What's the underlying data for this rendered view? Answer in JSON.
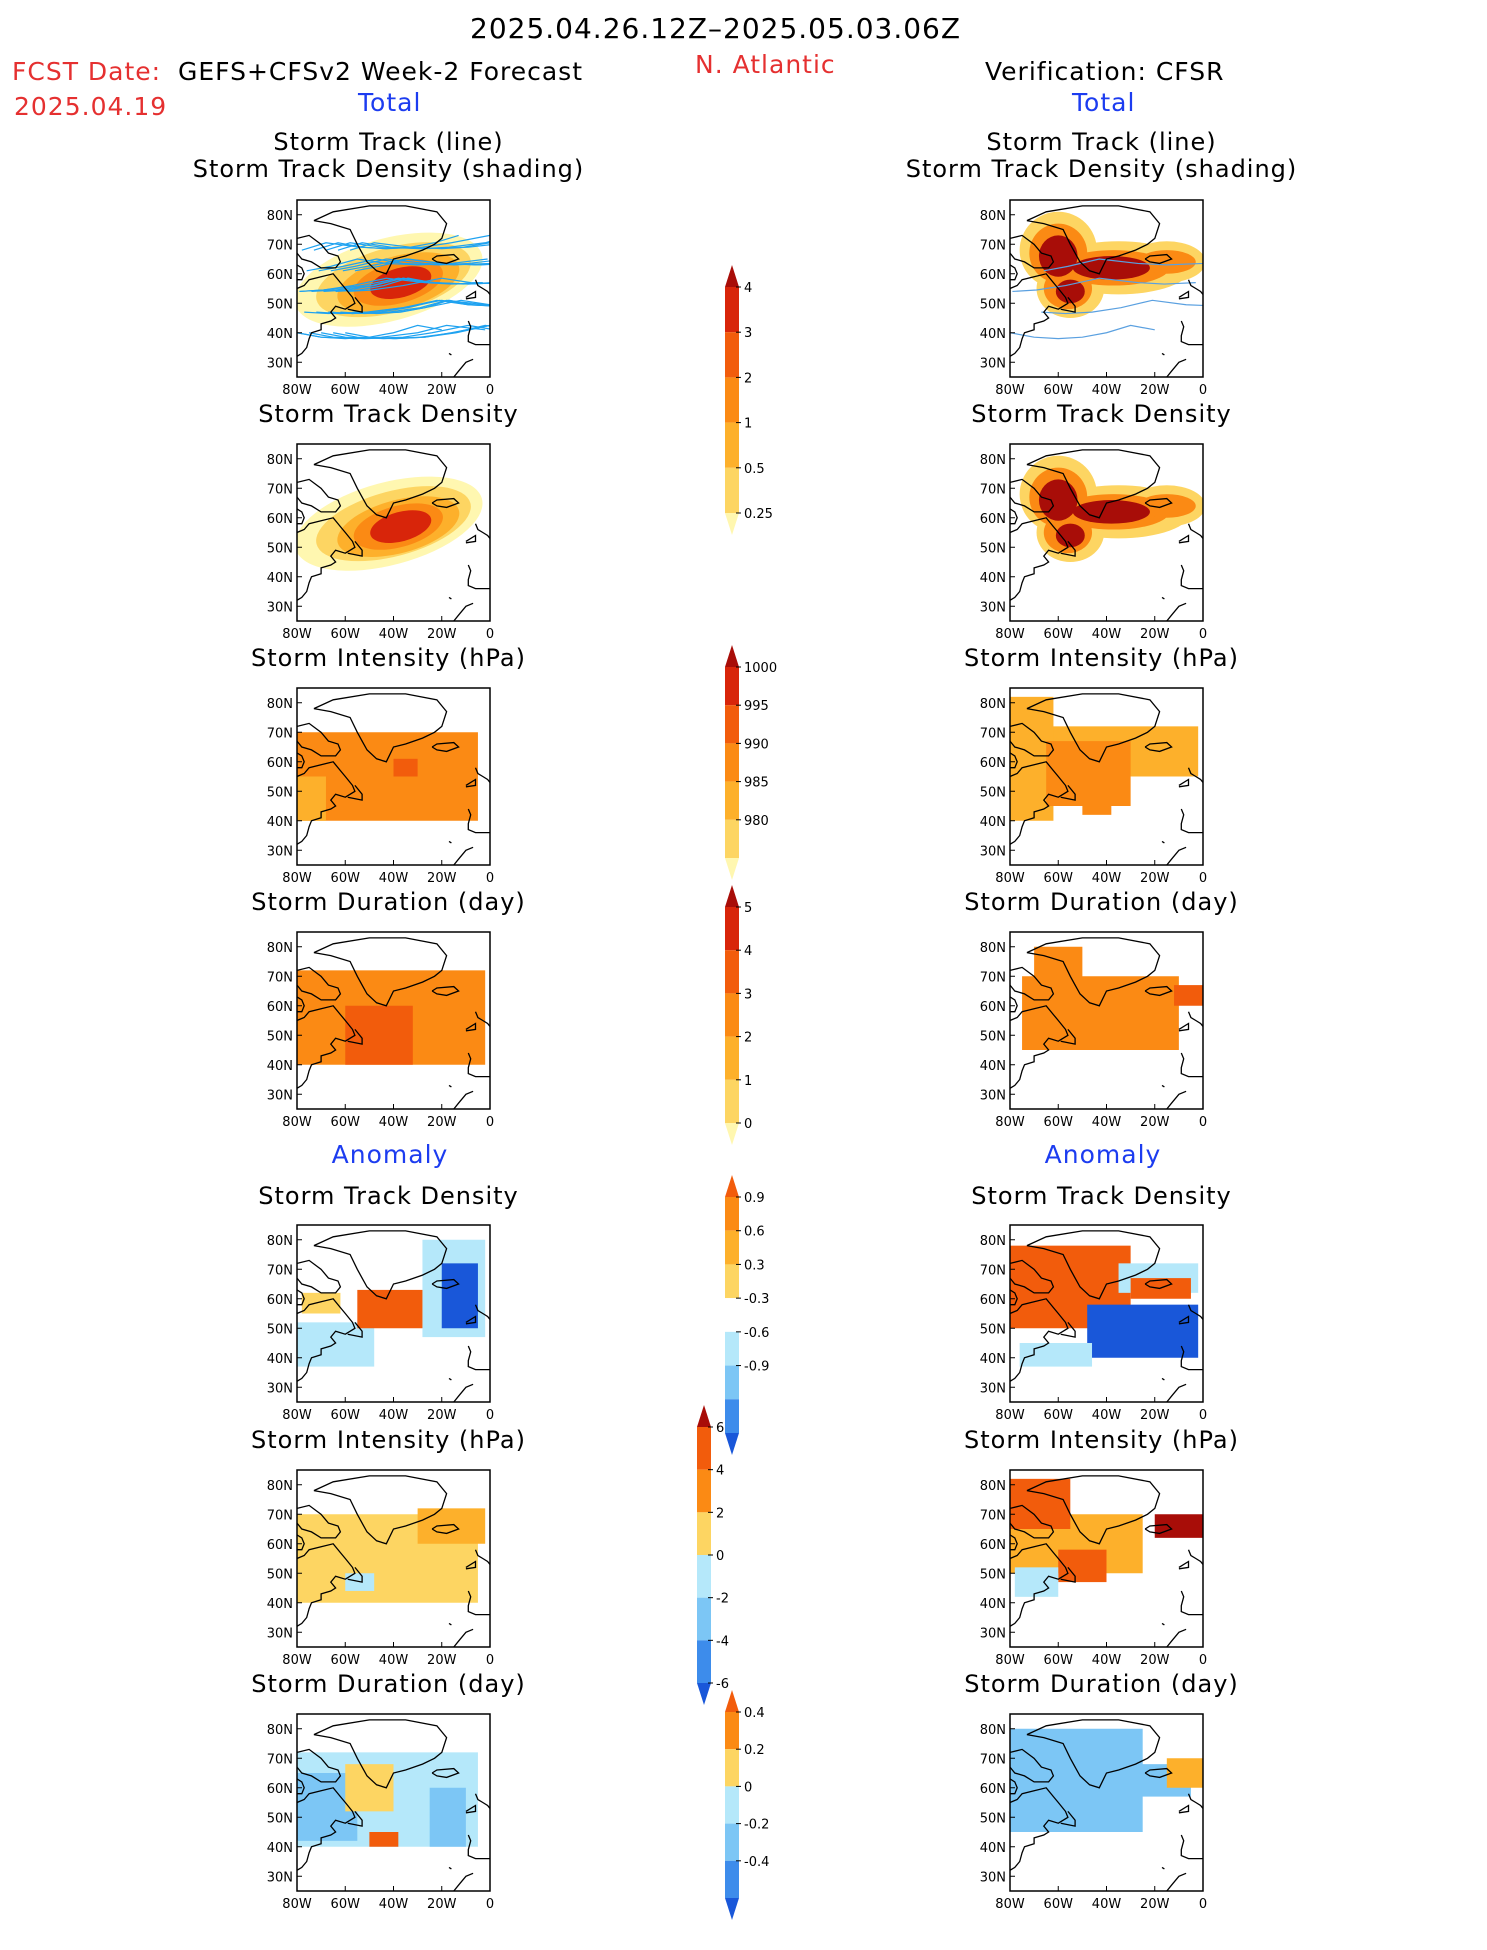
{
  "header": {
    "period": "2025.04.26.12Z–2025.05.03.06Z",
    "fcst_label": "FCST Date:",
    "fcst_model": "GEFS+CFSv2 Week-2 Forecast",
    "fcst_date": "2025.04.19",
    "region": "N. Atlantic",
    "verification": "Verification: CFSR"
  },
  "sections": {
    "total": "Total",
    "anomaly": "Anomaly"
  },
  "colors": {
    "title_red": "#e53030",
    "title_blue": "#1c3cf0",
    "warm": [
      "#fff7b0",
      "#fdd562",
      "#fdb02b",
      "#fb8a14",
      "#f25c0c",
      "#d8250a",
      "#a80d08"
    ],
    "cool": [
      "#b5e8fa",
      "#7cc6f5",
      "#3d8ceb",
      "#1957d9"
    ]
  },
  "map_axes": {
    "lon_ticks": [
      "80W",
      "60W",
      "40W",
      "20W",
      "0"
    ],
    "lat_ticks": [
      "80N",
      "70N",
      "60N",
      "50N",
      "40N",
      "30N"
    ]
  },
  "left_panels": [
    {
      "title": [
        "Storm Track (line)",
        "Storm Track Density (shading)"
      ],
      "field": "density_fcst",
      "tracks": true
    },
    {
      "title": [
        "Storm Track Density"
      ],
      "field": "density_fcst"
    },
    {
      "title": [
        "Storm Intensity (hPa)"
      ],
      "field": "intensity_fcst"
    },
    {
      "title": [
        "Storm Duration (day)"
      ],
      "field": "duration_fcst"
    },
    {
      "title": [
        "Storm Track Density"
      ],
      "field": "density_anom_fcst"
    },
    {
      "title": [
        "Storm Intensity (hPa)"
      ],
      "field": "intensity_anom_fcst"
    },
    {
      "title": [
        "Storm Duration (day)"
      ],
      "field": "duration_anom_fcst"
    }
  ],
  "right_panels": [
    {
      "title": [
        "Storm Track (line)",
        "Storm Track Density (shading)"
      ],
      "field": "density_obs",
      "tracks": true
    },
    {
      "title": [
        "Storm Track Density"
      ],
      "field": "density_obs"
    },
    {
      "title": [
        "Storm Intensity (hPa)"
      ],
      "field": "intensity_obs"
    },
    {
      "title": [
        "Storm Duration (day)"
      ],
      "field": "duration_obs"
    },
    {
      "title": [
        "Storm Track Density"
      ],
      "field": "density_anom_obs"
    },
    {
      "title": [
        "Storm Intensity (hPa)"
      ],
      "field": "intensity_anom_obs"
    },
    {
      "title": [
        "Storm Duration (day)"
      ],
      "field": "duration_anom_obs"
    }
  ],
  "chart_data": {
    "type": "heatmap",
    "region": "N. Atlantic",
    "xlim": [
      -80,
      0
    ],
    "ylim": [
      25,
      85
    ],
    "colorbars": [
      {
        "name": "density",
        "labels": [
          "0.25",
          "0.5",
          "1",
          "2",
          "3",
          "4"
        ],
        "colors": [
          "#fff7b0",
          "#fdd562",
          "#fdb02b",
          "#fb8a14",
          "#f25c0c",
          "#d8250a",
          "#a80d08"
        ]
      },
      {
        "name": "intensity",
        "labels": [
          "1000",
          "995",
          "990",
          "985",
          "980"
        ],
        "colors": [
          "#fff7b0",
          "#fdd562",
          "#fdb02b",
          "#fb8a14",
          "#f25c0c",
          "#d8250a",
          "#a80d08"
        ]
      },
      {
        "name": "duration",
        "labels": [
          "0",
          "1",
          "2",
          "3",
          "4",
          "5"
        ],
        "colors": [
          "#fff7b0",
          "#fdd562",
          "#fdb02b",
          "#fb8a14",
          "#f25c0c",
          "#d8250a",
          "#a80d08"
        ]
      },
      {
        "name": "density_anomaly",
        "labels": [
          "0.9",
          "0.6",
          "0.3",
          "-0.3",
          "-0.6",
          "-0.9"
        ],
        "colors": [
          "#f25c0c",
          "#fb8a14",
          "#fdb02b",
          "#fdd562",
          "#ffffff",
          "#b5e8fa",
          "#7cc6f5",
          "#3d8ceb",
          "#1957d9"
        ]
      },
      {
        "name": "intensity_anomaly",
        "labels": [
          "6",
          "4",
          "2",
          "0",
          "-2",
          "-4",
          "-6"
        ],
        "colors": [
          "#a80d08",
          "#f25c0c",
          "#fb8a14",
          "#fdd562",
          "#b5e8fa",
          "#7cc6f5",
          "#3d8ceb",
          "#1957d9"
        ]
      },
      {
        "name": "duration_anomaly",
        "labels": [
          "0.4",
          "0.2",
          "0",
          "-0.2",
          "-0.4"
        ],
        "colors": [
          "#f25c0c",
          "#fb8a14",
          "#fdd562",
          "#b5e8fa",
          "#7cc6f5",
          "#3d8ceb",
          "#1957d9"
        ]
      }
    ],
    "fields": {
      "density_fcst": {
        "kind": "blobs",
        "items": [
          {
            "lon": -42,
            "lat": 58,
            "rx": 40,
            "ry": 14,
            "rot": -15,
            "v": 0.3
          },
          {
            "lon": -40,
            "lat": 58,
            "rx": 33,
            "ry": 11,
            "rot": -15,
            "v": 0.7
          },
          {
            "lon": -38,
            "lat": 57,
            "rx": 26,
            "ry": 9,
            "rot": -15,
            "v": 1.5
          },
          {
            "lon": -38,
            "lat": 57,
            "rx": 19,
            "ry": 7,
            "rot": -15,
            "v": 2.5
          },
          {
            "lon": -37,
            "lat": 57,
            "rx": 13,
            "ry": 5,
            "rot": -15,
            "v": 3.5
          }
        ]
      },
      "density_obs": {
        "kind": "blobs",
        "items": [
          {
            "lon": -60,
            "lat": 68,
            "rx": 16,
            "ry": 13,
            "rot": 0,
            "v": 0.7
          },
          {
            "lon": -35,
            "lat": 62,
            "rx": 30,
            "ry": 9,
            "rot": 0,
            "v": 0.7
          },
          {
            "lon": -55,
            "lat": 55,
            "rx": 14,
            "ry": 10,
            "rot": 0,
            "v": 0.7
          },
          {
            "lon": -15,
            "lat": 64,
            "rx": 16,
            "ry": 7,
            "rot": 0,
            "v": 0.7
          },
          {
            "lon": -60,
            "lat": 67,
            "rx": 12,
            "ry": 10,
            "rot": 0,
            "v": 2.5
          },
          {
            "lon": -37,
            "lat": 62,
            "rx": 23,
            "ry": 6,
            "rot": 0,
            "v": 2.5
          },
          {
            "lon": -56,
            "lat": 55,
            "rx": 10,
            "ry": 7,
            "rot": 0,
            "v": 2.5
          },
          {
            "lon": -15,
            "lat": 64,
            "rx": 12,
            "ry": 4,
            "rot": 0,
            "v": 2.5
          },
          {
            "lon": -60,
            "lat": 66,
            "rx": 8,
            "ry": 7,
            "rot": 0,
            "v": 4.5
          },
          {
            "lon": -38,
            "lat": 62,
            "rx": 16,
            "ry": 4,
            "rot": 0,
            "v": 4.5
          },
          {
            "lon": -55,
            "lat": 54,
            "rx": 6,
            "ry": 4,
            "rot": 0,
            "v": 4.5
          }
        ]
      },
      "intensity_fcst": {
        "kind": "boxes",
        "items": [
          {
            "lon0": -80,
            "lon1": -5,
            "lat0": 40,
            "lat1": 70,
            "v": 992
          },
          {
            "lon0": -80,
            "lon1": -68,
            "lat0": 40,
            "lat1": 55,
            "v": 998
          },
          {
            "lon0": -40,
            "lon1": -30,
            "lat0": 55,
            "lat1": 61,
            "v": 988
          }
        ]
      },
      "intensity_obs": {
        "kind": "boxes",
        "items": [
          {
            "lon0": -80,
            "lon1": -2,
            "lat0": 55,
            "lat1": 72,
            "v": 998
          },
          {
            "lon0": -80,
            "lon1": -62,
            "lat0": 40,
            "lat1": 82,
            "v": 998
          },
          {
            "lon0": -65,
            "lon1": -30,
            "lat0": 45,
            "lat1": 67,
            "v": 993
          },
          {
            "lon0": -50,
            "lon1": -38,
            "lat0": 42,
            "lat1": 56,
            "v": 993
          }
        ]
      },
      "duration_fcst": {
        "kind": "boxes",
        "items": [
          {
            "lon0": -80,
            "lon1": -2,
            "lat0": 40,
            "lat1": 72,
            "v": 2.5
          },
          {
            "lon0": -60,
            "lon1": -32,
            "lat0": 40,
            "lat1": 60,
            "v": 3.5
          }
        ]
      },
      "duration_obs": {
        "kind": "boxes",
        "items": [
          {
            "lon0": -75,
            "lon1": -10,
            "lat0": 45,
            "lat1": 70,
            "v": 2.5
          },
          {
            "lon0": -70,
            "lon1": -50,
            "lat0": 65,
            "lat1": 80,
            "v": 2.5
          },
          {
            "lon0": -12,
            "lon1": 0,
            "lat0": 60,
            "lat1": 67,
            "v": 3.5
          }
        ]
      },
      "density_anom_fcst": {
        "kind": "boxes",
        "items": [
          {
            "lon0": -80,
            "lon1": -48,
            "lat0": 37,
            "lat1": 52,
            "v": -0.4
          },
          {
            "lon0": -28,
            "lon1": -2,
            "lat0": 47,
            "lat1": 80,
            "v": -0.4
          },
          {
            "lon0": -20,
            "lon1": -5,
            "lat0": 50,
            "lat1": 72,
            "v": -0.8
          },
          {
            "lon0": -55,
            "lon1": -28,
            "lat0": 50,
            "lat1": 63,
            "v": 0.8
          },
          {
            "lon0": -78,
            "lon1": -62,
            "lat0": 55,
            "lat1": 62,
            "v": 0.4
          }
        ]
      },
      "density_anom_obs": {
        "kind": "boxes",
        "items": [
          {
            "lon0": -80,
            "lon1": -30,
            "lat0": 50,
            "lat1": 78,
            "v": 0.8
          },
          {
            "lon0": -48,
            "lon1": -2,
            "lat0": 40,
            "lat1": 58,
            "v": -0.8
          },
          {
            "lon0": -35,
            "lon1": -2,
            "lat0": 62,
            "lat1": 72,
            "v": -0.4
          },
          {
            "lon0": -76,
            "lon1": -46,
            "lat0": 37,
            "lat1": 45,
            "v": -0.4
          },
          {
            "lon0": -30,
            "lon1": -5,
            "lat0": 60,
            "lat1": 67,
            "v": 0.8
          }
        ]
      },
      "intensity_anom_fcst": {
        "kind": "boxes",
        "items": [
          {
            "lon0": -80,
            "lon1": -5,
            "lat0": 40,
            "lat1": 70,
            "v": 1
          },
          {
            "lon0": -30,
            "lon1": -2,
            "lat0": 60,
            "lat1": 72,
            "v": 3
          },
          {
            "lon0": -60,
            "lon1": -48,
            "lat0": 44,
            "lat1": 50,
            "v": -1
          }
        ]
      },
      "intensity_anom_obs": {
        "kind": "boxes",
        "items": [
          {
            "lon0": -80,
            "lon1": -25,
            "lat0": 50,
            "lat1": 70,
            "v": 3
          },
          {
            "lon0": -80,
            "lon1": -55,
            "lat0": 65,
            "lat1": 82,
            "v": 5
          },
          {
            "lon0": -20,
            "lon1": 0,
            "lat0": 62,
            "lat1": 70,
            "v": 7
          },
          {
            "lon0": -60,
            "lon1": -40,
            "lat0": 47,
            "lat1": 58,
            "v": 5
          },
          {
            "lon0": -78,
            "lon1": -60,
            "lat0": 42,
            "lat1": 52,
            "v": -1
          }
        ]
      },
      "duration_anom_fcst": {
        "kind": "boxes",
        "items": [
          {
            "lon0": -80,
            "lon1": -5,
            "lat0": 40,
            "lat1": 72,
            "v": -0.1
          },
          {
            "lon0": -80,
            "lon1": -55,
            "lat0": 42,
            "lat1": 65,
            "v": -0.3
          },
          {
            "lon0": -60,
            "lon1": -40,
            "lat0": 52,
            "lat1": 68,
            "v": 0.1
          },
          {
            "lon0": -50,
            "lon1": -38,
            "lat0": 40,
            "lat1": 45,
            "v": 0.4
          },
          {
            "lon0": -25,
            "lon1": -10,
            "lat0": 40,
            "lat1": 60,
            "v": -0.3
          }
        ]
      },
      "duration_anom_obs": {
        "kind": "boxes",
        "items": [
          {
            "lon0": -80,
            "lon1": -25,
            "lat0": 45,
            "lat1": 80,
            "v": -0.3
          },
          {
            "lon0": -30,
            "lon1": -5,
            "lat0": 57,
            "lat1": 68,
            "v": -0.3
          },
          {
            "lon0": -15,
            "lon1": 0,
            "lat0": 60,
            "lat1": 70,
            "v": 0.2
          }
        ]
      }
    }
  }
}
